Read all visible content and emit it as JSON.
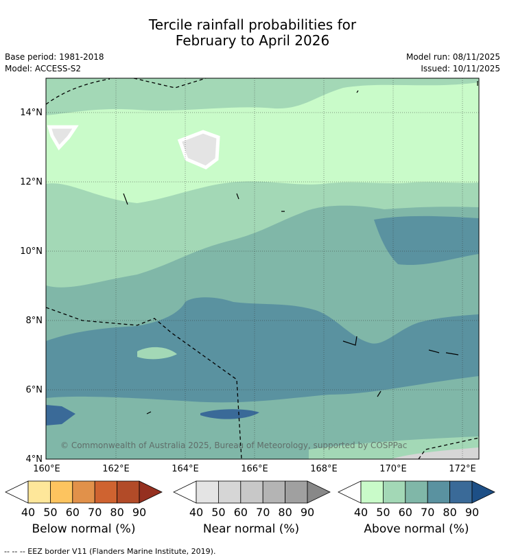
{
  "header": {
    "title_line1": "Tercile rainfall probabilities for",
    "title_line2": "February to April 2026",
    "base_period": "Base period: 1981-2018",
    "model": "Model: ACCESS-S2",
    "model_run": "Model run: 08/11/2025",
    "issued": "Issued: 10/11/2025"
  },
  "map": {
    "lat_labels": [
      "14°N",
      "12°N",
      "10°N",
      "8°N",
      "6°N",
      "4°N"
    ],
    "lon_labels": [
      "160°E",
      "162°E",
      "164°E",
      "166°E",
      "168°E",
      "170°E",
      "172°E"
    ],
    "copyright": "© Commonwealth of Australia 2025, Bureau of Meteorology, supported by COSPPac"
  },
  "legend": {
    "below": {
      "label": "Below normal (%)",
      "ticks": [
        "40",
        "50",
        "60",
        "70",
        "80",
        "90"
      ],
      "colors": [
        "#fee79a",
        "#fdc45f",
        "#e1914a",
        "#cf6330",
        "#b24b28",
        "#953020"
      ]
    },
    "near": {
      "label": "Near normal (%)",
      "ticks": [
        "40",
        "50",
        "60",
        "70",
        "80",
        "90"
      ],
      "colors": [
        "#e4e4e4",
        "#d6d6d6",
        "#c8c8c8",
        "#b4b4b4",
        "#a0a0a0",
        "#888888"
      ]
    },
    "above": {
      "label": "Above normal (%)",
      "ticks": [
        "40",
        "50",
        "60",
        "70",
        "80",
        "90"
      ],
      "colors": [
        "#c9fbc9",
        "#a3d8b6",
        "#80b7a8",
        "#5a92a0",
        "#3a6a98",
        "#1d4f86"
      ]
    }
  },
  "footnote": "--  --  -- EEZ border V11 (Flanders Marine Institute, 2019)."
}
